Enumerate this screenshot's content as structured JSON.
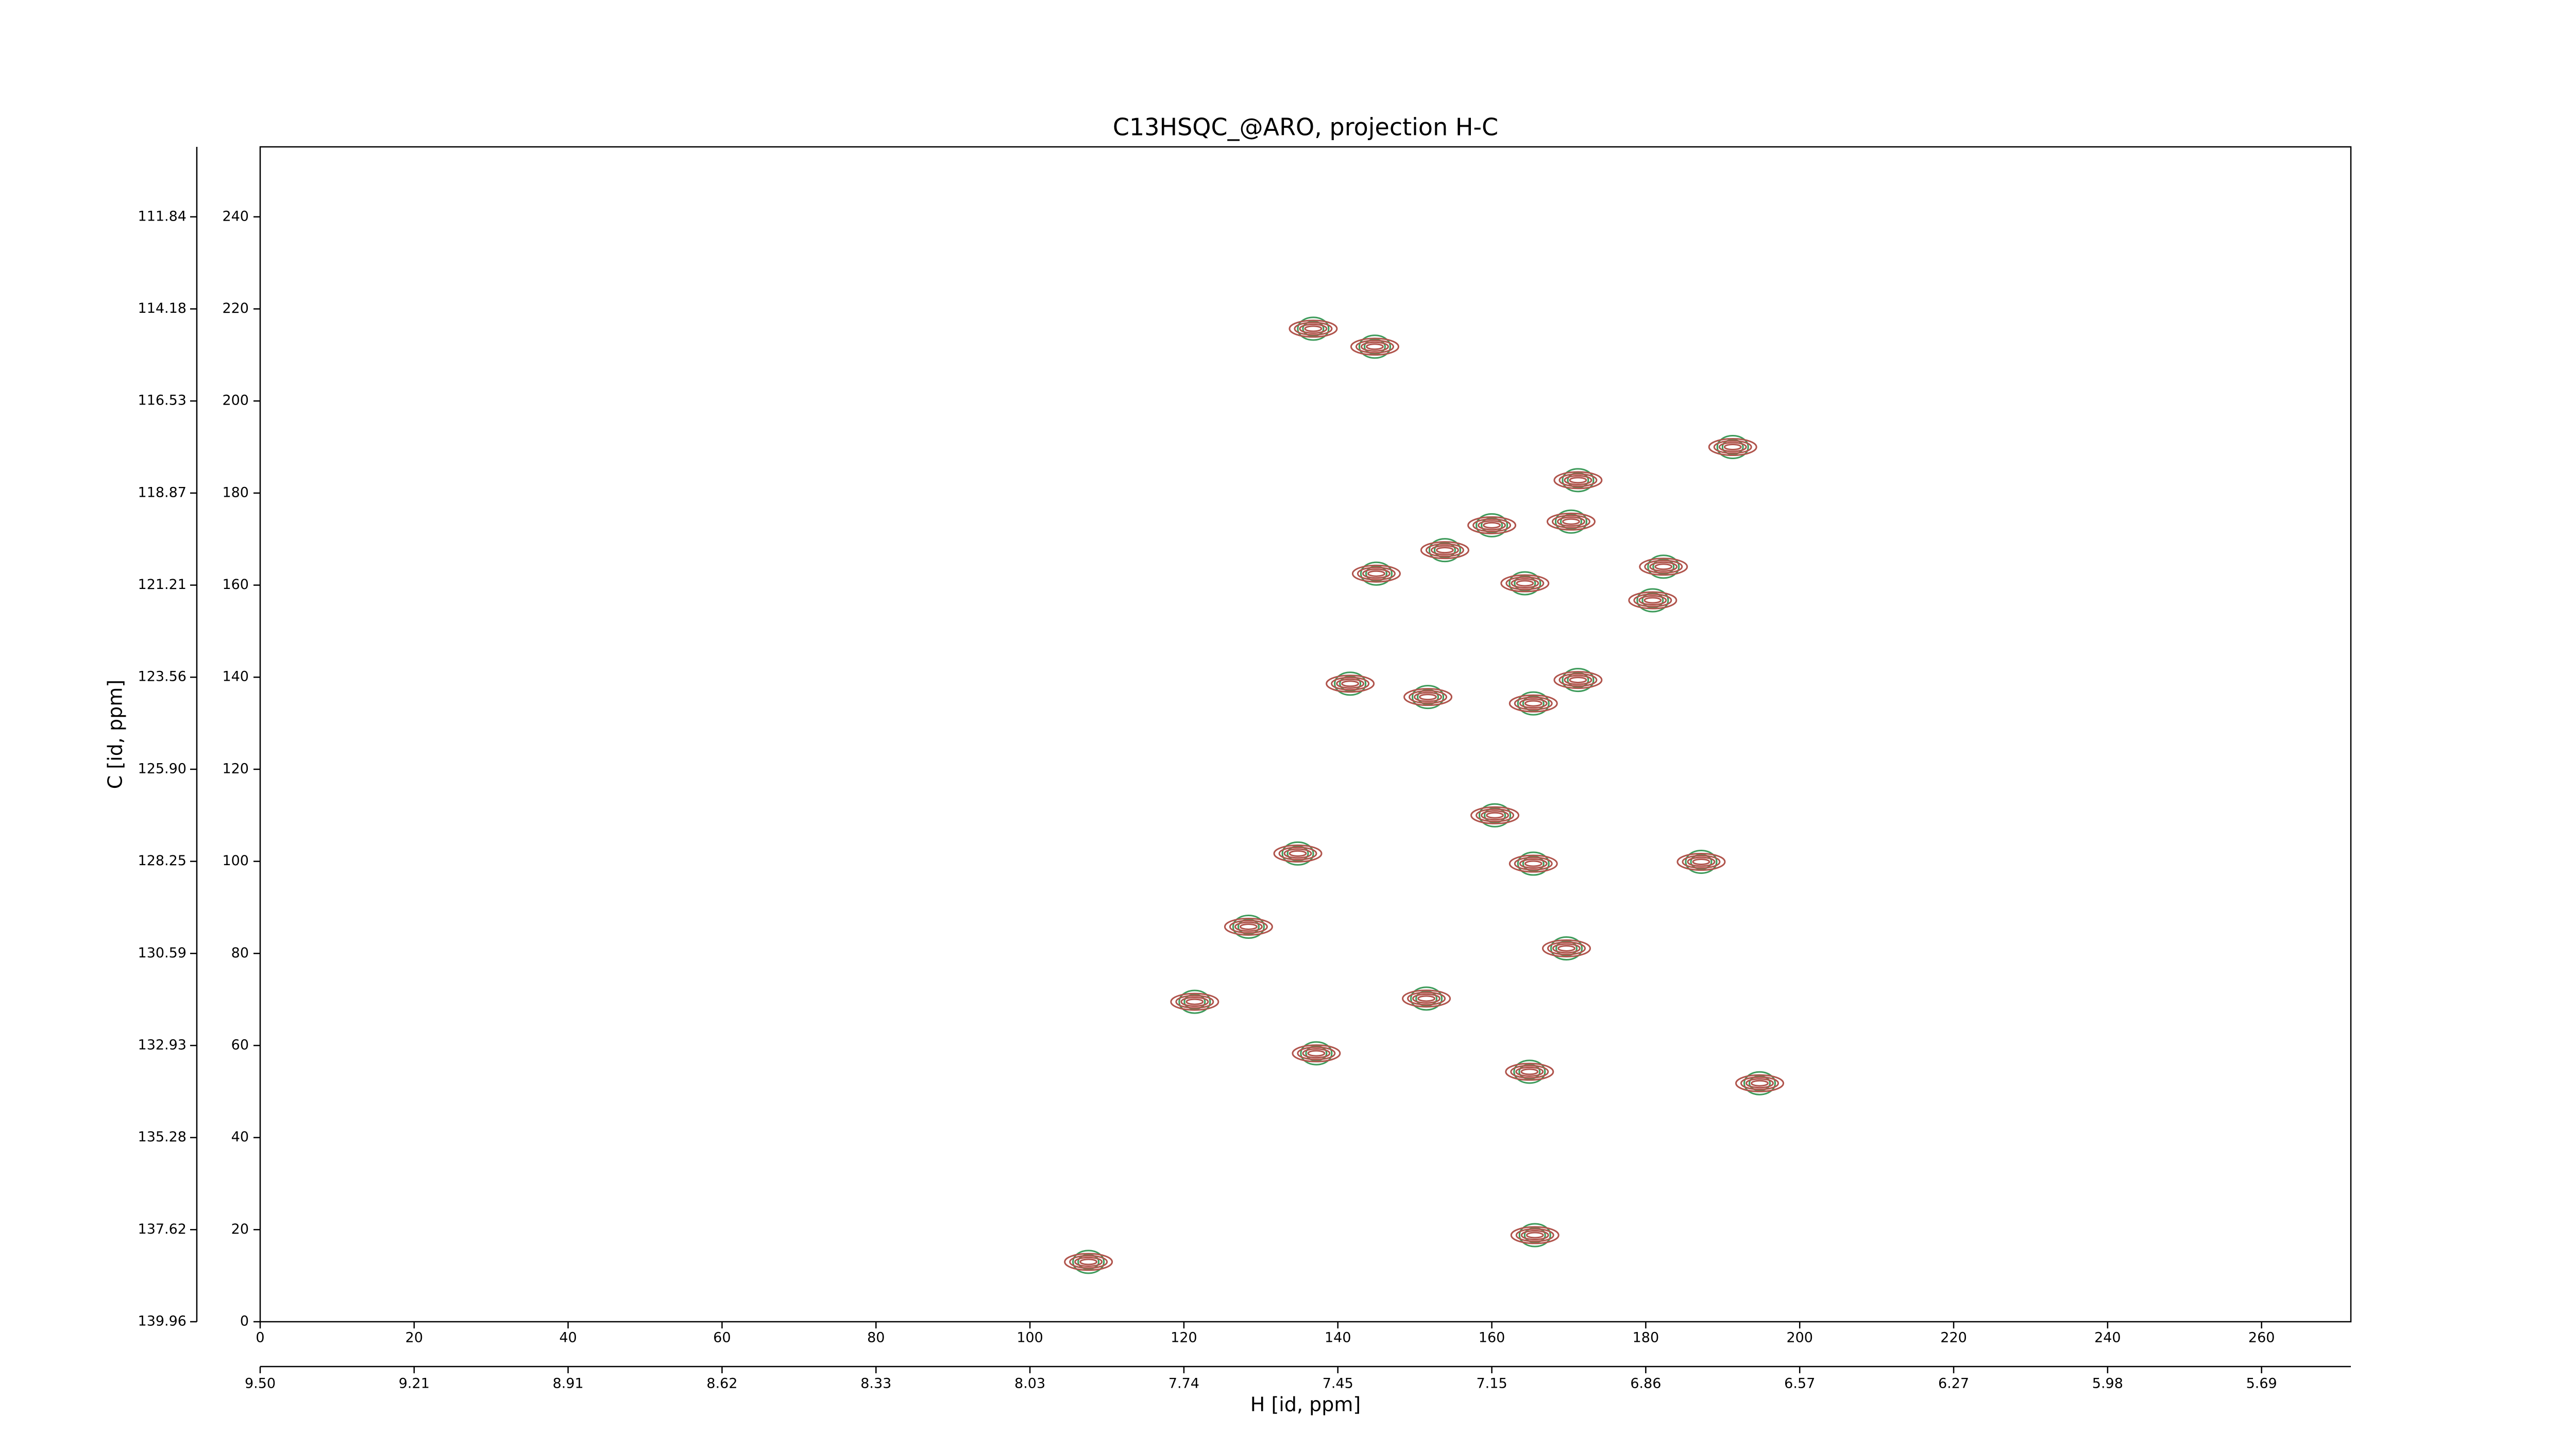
{
  "chart_data": {
    "type": "scatter",
    "title": "C13HSQC_@ARO, projection H-C",
    "xlabel": "H [id, ppm]",
    "ylabel": "C [id, ppm]",
    "xlim": [
      0,
      271.6
    ],
    "ylim": [
      0,
      255.2
    ],
    "xticks": [
      0,
      20,
      40,
      60,
      80,
      100,
      120,
      140,
      160,
      180,
      200,
      220,
      240,
      260
    ],
    "yticks": [
      0,
      20,
      40,
      60,
      80,
      100,
      120,
      140,
      160,
      180,
      200,
      220,
      240
    ],
    "x2ticks": [
      {
        "value": 0,
        "label": "9.50"
      },
      {
        "value": 20,
        "label": "9.21"
      },
      {
        "value": 40,
        "label": "8.91"
      },
      {
        "value": 60,
        "label": "8.62"
      },
      {
        "value": 80,
        "label": "8.33"
      },
      {
        "value": 100,
        "label": "8.03"
      },
      {
        "value": 120,
        "label": "7.74"
      },
      {
        "value": 140,
        "label": "7.45"
      },
      {
        "value": 160,
        "label": "7.15"
      },
      {
        "value": 180,
        "label": "6.86"
      },
      {
        "value": 200,
        "label": "6.57"
      },
      {
        "value": 220,
        "label": "6.27"
      },
      {
        "value": 240,
        "label": "5.98"
      },
      {
        "value": 260,
        "label": "5.69"
      }
    ],
    "y2ticks": [
      {
        "value": 0,
        "label": "139.96"
      },
      {
        "value": 20,
        "label": "137.62"
      },
      {
        "value": 40,
        "label": "135.28"
      },
      {
        "value": 60,
        "label": "132.93"
      },
      {
        "value": 80,
        "label": "130.59"
      },
      {
        "value": 100,
        "label": "128.25"
      },
      {
        "value": 120,
        "label": "125.90"
      },
      {
        "value": 140,
        "label": "123.56"
      },
      {
        "value": 160,
        "label": "121.21"
      },
      {
        "value": 180,
        "label": "118.87"
      },
      {
        "value": 200,
        "label": "116.53"
      },
      {
        "value": 220,
        "label": "114.18"
      },
      {
        "value": 240,
        "label": "111.84"
      }
    ],
    "colors": [
      "#b0544c",
      "#3d9a5a"
    ],
    "series": [
      {
        "x": [
          136.8,
          144.8,
          191.3,
          171.2,
          170.3,
          160.0,
          153.9,
          182.3,
          145.0,
          164.3,
          180.9,
          141.6,
          151.7,
          171.2,
          165.4,
          160.4,
          134.8,
          165.4,
          187.2,
          128.4,
          169.7,
          121.4,
          151.5,
          137.2,
          164.9,
          194.8,
          165.6,
          107.6
        ],
        "y": [
          215.7,
          211.8,
          190.0,
          182.8,
          173.8,
          173.0,
          167.6,
          164.0,
          162.5,
          160.4,
          156.7,
          138.6,
          135.7,
          139.4,
          134.3,
          110.0,
          101.7,
          99.5,
          99.9,
          85.8,
          81.1,
          69.5,
          70.2,
          58.3,
          54.3,
          51.8,
          18.8,
          13.0
        ]
      }
    ]
  }
}
